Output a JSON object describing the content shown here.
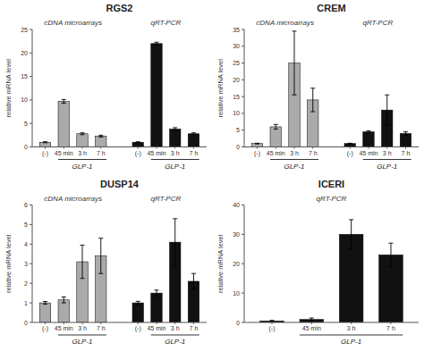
{
  "chart_data": [
    {
      "type": "bar",
      "title": "RGS2",
      "ylabel": "relative mRNA level",
      "annotations": [
        "cDNA microarrays",
        "qRT-PCR"
      ],
      "group_labels": [
        "GLP-1",
        "GLP-1"
      ],
      "categories": [
        "(-)",
        "45 min",
        "3 h",
        "7 h",
        "(-)",
        "45 min",
        "3 h",
        "7 h"
      ],
      "values": [
        1.0,
        9.7,
        2.8,
        2.3,
        1.0,
        22.0,
        3.8,
        2.8
      ],
      "errors": [
        0.1,
        0.4,
        0.2,
        0.2,
        0.1,
        0.3,
        0.3,
        0.2
      ],
      "colors": [
        "#aaaaaa",
        "#aaaaaa",
        "#aaaaaa",
        "#aaaaaa",
        "#111111",
        "#111111",
        "#111111",
        "#111111"
      ],
      "ylim": [
        0,
        25
      ],
      "yticks": [
        0,
        5,
        10,
        15,
        20,
        25
      ],
      "grid": false
    },
    {
      "type": "bar",
      "title": "CREM",
      "ylabel": "relative mRNA level",
      "annotations": [
        "cDNA microarrays",
        "qRT-PCR"
      ],
      "group_labels": [
        "GLP-1",
        "GLP-1"
      ],
      "categories": [
        "(-)",
        "45 min",
        "3 h",
        "7 h",
        "(-)",
        "45 min",
        "3 h",
        "7 h"
      ],
      "values": [
        1.0,
        6.0,
        25.0,
        14.0,
        1.0,
        4.5,
        11.0,
        4.0
      ],
      "errors": [
        0.1,
        0.7,
        9.5,
        3.5,
        0.1,
        0.3,
        4.5,
        0.5
      ],
      "colors": [
        "#aaaaaa",
        "#aaaaaa",
        "#aaaaaa",
        "#aaaaaa",
        "#111111",
        "#111111",
        "#111111",
        "#111111"
      ],
      "ylim": [
        0,
        35
      ],
      "yticks": [
        0,
        5,
        10,
        15,
        20,
        25,
        30,
        35
      ],
      "grid": false
    },
    {
      "type": "bar",
      "title": "DUSP14",
      "ylabel": "relative mRNA level",
      "annotations": [
        "cDNA microarrays",
        "qRT-PCR"
      ],
      "group_labels": [
        "GLP-1",
        "GLP-1"
      ],
      "categories": [
        "(-)",
        "45 min",
        "3 h",
        "7 h",
        "(-)",
        "45 min",
        "3 h",
        "7 h"
      ],
      "values": [
        1.0,
        1.15,
        3.1,
        3.4,
        1.0,
        1.5,
        4.1,
        2.1
      ],
      "errors": [
        0.07,
        0.15,
        0.85,
        0.9,
        0.08,
        0.15,
        1.2,
        0.4
      ],
      "colors": [
        "#aaaaaa",
        "#aaaaaa",
        "#aaaaaa",
        "#aaaaaa",
        "#111111",
        "#111111",
        "#111111",
        "#111111"
      ],
      "ylim": [
        0,
        6
      ],
      "yticks": [
        0,
        1,
        2,
        3,
        4,
        5,
        6
      ],
      "grid": false
    },
    {
      "type": "bar",
      "title": "ICERI",
      "ylabel": "relative mRNA level",
      "annotations": [
        "qRT-PCR"
      ],
      "group_labels": [
        "GLP-1"
      ],
      "categories": [
        "(-)",
        "45 min",
        "3 h",
        "7 h"
      ],
      "values": [
        0.5,
        1.0,
        30.0,
        23.0
      ],
      "errors": [
        0.2,
        0.5,
        5.0,
        4.0
      ],
      "colors": [
        "#111111",
        "#111111",
        "#111111",
        "#111111"
      ],
      "ylim": [
        0,
        40
      ],
      "yticks": [
        0,
        10,
        20,
        30,
        40
      ],
      "grid": false
    }
  ]
}
